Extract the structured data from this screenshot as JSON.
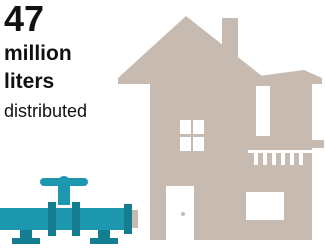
{
  "stat": {
    "number": "47",
    "line1": "million",
    "line2": "liters",
    "caption": "distributed"
  }
}
